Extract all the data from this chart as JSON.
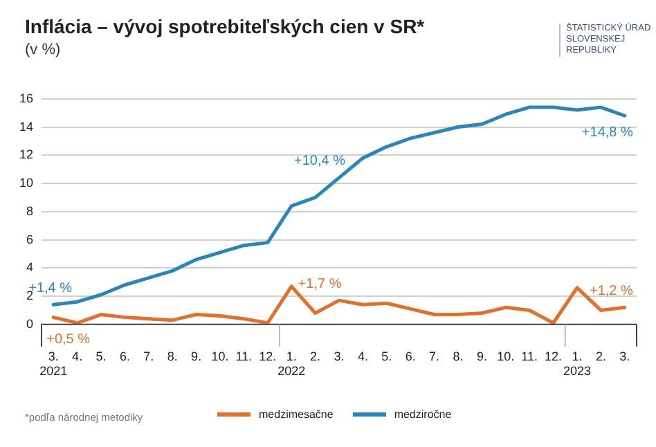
{
  "chart_data": {
    "type": "line",
    "title": "Inflácia – vývoj spotrebiteľských cien v SR*",
    "subtitle": "(v %)",
    "categories": [
      "3.\n2021",
      "4.",
      "5.",
      "6.",
      "7.",
      "8.",
      "9.",
      "10.",
      "11.",
      "12.",
      "1.\n2022",
      "2.",
      "3.",
      "4.",
      "5.",
      "6.",
      "7.",
      "8.",
      "9.",
      "10.",
      "11.",
      "12.",
      "1.\n2023",
      "2.",
      "3."
    ],
    "series": [
      {
        "name": "medzimesačne",
        "color": "#e0702a",
        "values": [
          0.5,
          0.1,
          0.7,
          0.5,
          0.4,
          0.3,
          0.7,
          0.6,
          0.4,
          0.1,
          2.7,
          0.8,
          1.7,
          1.4,
          1.5,
          1.1,
          0.7,
          0.7,
          0.8,
          1.2,
          1.0,
          0.1,
          2.6,
          1.0,
          1.2
        ],
        "value_labels": [
          "+0,5 %",
          null,
          null,
          null,
          null,
          null,
          null,
          null,
          null,
          null,
          null,
          null,
          "+1,7 %",
          null,
          null,
          null,
          null,
          null,
          null,
          null,
          null,
          null,
          null,
          null,
          "+1,2 %"
        ]
      },
      {
        "name": "medziročne",
        "color": "#2a85bd",
        "values": [
          1.4,
          1.6,
          2.1,
          2.8,
          3.3,
          3.8,
          4.6,
          5.1,
          5.6,
          5.8,
          8.4,
          9.0,
          10.4,
          11.8,
          12.6,
          13.2,
          13.6,
          14.0,
          14.2,
          14.9,
          15.4,
          15.4,
          15.2,
          15.4,
          14.8
        ],
        "value_labels": [
          "+1,4 %",
          null,
          null,
          null,
          null,
          null,
          null,
          null,
          null,
          null,
          null,
          null,
          "+10,4 %",
          null,
          null,
          null,
          null,
          null,
          null,
          null,
          null,
          null,
          null,
          null,
          "+14,8 %"
        ]
      }
    ],
    "ylim": [
      0,
      16
    ],
    "yticks": [
      0,
      2,
      4,
      6,
      8,
      10,
      12,
      14,
      16
    ],
    "grid": "y",
    "legend": "bottom",
    "marker": "none",
    "line_style": "solid",
    "annotations": [
      "*podľa národnej metodiky",
      "ŠTATISTICKÝ ÚRAD SLOVENSKEJ REPUBLIKY"
    ]
  }
}
